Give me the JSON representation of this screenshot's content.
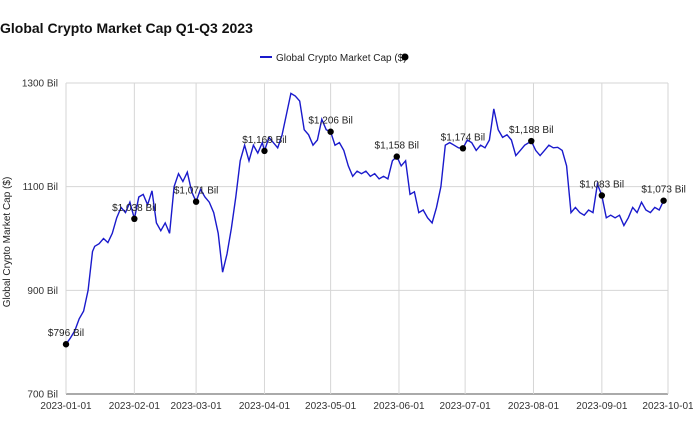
{
  "chart_data": {
    "type": "line",
    "title": "Global Crypto Market Cap Q1-Q3 2023",
    "ylabel": "Global Crypto Market Cap ($)",
    "xlabel": "",
    "ylim": [
      700,
      1300
    ],
    "y_ticks": [
      {
        "value": 700,
        "label": "700 Bil"
      },
      {
        "value": 900,
        "label": "900 Bil"
      },
      {
        "value": 1100,
        "label": "1100 Bil"
      },
      {
        "value": 1300,
        "label": "1300 Bil"
      }
    ],
    "x_range": [
      "2023-01-01",
      "2023-10-01"
    ],
    "x_ticks": [
      "2023-01-01",
      "2023-02-01",
      "2023-03-01",
      "2023-04-01",
      "2023-05-01",
      "2023-06-01",
      "2023-07-01",
      "2023-08-01",
      "2023-09-01",
      "2023-10-01"
    ],
    "grid": true,
    "legend": {
      "position": "top",
      "label": "Global Crypto Market Cap ($)"
    },
    "series": [
      {
        "name": "Global Crypto Market Cap ($)",
        "color": "#1a1acc",
        "points": [
          [
            "2023-01-01",
            796
          ],
          [
            "2023-01-03",
            808
          ],
          [
            "2023-01-05",
            822
          ],
          [
            "2023-01-07",
            845
          ],
          [
            "2023-01-09",
            860
          ],
          [
            "2023-01-11",
            900
          ],
          [
            "2023-01-13",
            975
          ],
          [
            "2023-01-14",
            985
          ],
          [
            "2023-01-16",
            990
          ],
          [
            "2023-01-18",
            1000
          ],
          [
            "2023-01-20",
            992
          ],
          [
            "2023-01-22",
            1010
          ],
          [
            "2023-01-24",
            1040
          ],
          [
            "2023-01-26",
            1060
          ],
          [
            "2023-01-28",
            1050
          ],
          [
            "2023-01-30",
            1070
          ],
          [
            "2023-02-01",
            1038
          ],
          [
            "2023-02-03",
            1080
          ],
          [
            "2023-02-05",
            1085
          ],
          [
            "2023-02-07",
            1065
          ],
          [
            "2023-02-09",
            1092
          ],
          [
            "2023-02-11",
            1030
          ],
          [
            "2023-02-13",
            1015
          ],
          [
            "2023-02-15",
            1030
          ],
          [
            "2023-02-17",
            1010
          ],
          [
            "2023-02-19",
            1100
          ],
          [
            "2023-02-21",
            1125
          ],
          [
            "2023-02-23",
            1110
          ],
          [
            "2023-02-25",
            1128
          ],
          [
            "2023-02-27",
            1090
          ],
          [
            "2023-03-01",
            1071
          ],
          [
            "2023-03-03",
            1095
          ],
          [
            "2023-03-05",
            1080
          ],
          [
            "2023-03-07",
            1070
          ],
          [
            "2023-03-09",
            1050
          ],
          [
            "2023-03-11",
            1010
          ],
          [
            "2023-03-13",
            935
          ],
          [
            "2023-03-15",
            970
          ],
          [
            "2023-03-17",
            1020
          ],
          [
            "2023-03-19",
            1080
          ],
          [
            "2023-03-21",
            1150
          ],
          [
            "2023-03-23",
            1180
          ],
          [
            "2023-03-25",
            1150
          ],
          [
            "2023-03-27",
            1180
          ],
          [
            "2023-03-29",
            1165
          ],
          [
            "2023-03-31",
            1185
          ],
          [
            "2023-04-01",
            1169
          ],
          [
            "2023-04-03",
            1195
          ],
          [
            "2023-04-05",
            1185
          ],
          [
            "2023-04-07",
            1175
          ],
          [
            "2023-04-09",
            1200
          ],
          [
            "2023-04-11",
            1240
          ],
          [
            "2023-04-13",
            1280
          ],
          [
            "2023-04-15",
            1275
          ],
          [
            "2023-04-17",
            1265
          ],
          [
            "2023-04-19",
            1210
          ],
          [
            "2023-04-21",
            1200
          ],
          [
            "2023-04-23",
            1180
          ],
          [
            "2023-04-25",
            1190
          ],
          [
            "2023-04-27",
            1230
          ],
          [
            "2023-04-29",
            1210
          ],
          [
            "2023-05-01",
            1206
          ],
          [
            "2023-05-03",
            1180
          ],
          [
            "2023-05-05",
            1185
          ],
          [
            "2023-05-07",
            1170
          ],
          [
            "2023-05-09",
            1140
          ],
          [
            "2023-05-11",
            1120
          ],
          [
            "2023-05-13",
            1130
          ],
          [
            "2023-05-15",
            1125
          ],
          [
            "2023-05-17",
            1130
          ],
          [
            "2023-05-19",
            1120
          ],
          [
            "2023-05-21",
            1125
          ],
          [
            "2023-05-23",
            1115
          ],
          [
            "2023-05-25",
            1120
          ],
          [
            "2023-05-27",
            1115
          ],
          [
            "2023-05-29",
            1150
          ],
          [
            "2023-05-31",
            1158
          ],
          [
            "2023-06-02",
            1140
          ],
          [
            "2023-06-04",
            1150
          ],
          [
            "2023-06-06",
            1085
          ],
          [
            "2023-06-08",
            1090
          ],
          [
            "2023-06-10",
            1050
          ],
          [
            "2023-06-12",
            1055
          ],
          [
            "2023-06-14",
            1040
          ],
          [
            "2023-06-16",
            1030
          ],
          [
            "2023-06-18",
            1060
          ],
          [
            "2023-06-20",
            1100
          ],
          [
            "2023-06-22",
            1180
          ],
          [
            "2023-06-24",
            1185
          ],
          [
            "2023-06-26",
            1180
          ],
          [
            "2023-06-28",
            1175
          ],
          [
            "2023-06-30",
            1174
          ],
          [
            "2023-07-02",
            1190
          ],
          [
            "2023-07-04",
            1185
          ],
          [
            "2023-07-06",
            1170
          ],
          [
            "2023-07-08",
            1180
          ],
          [
            "2023-07-10",
            1175
          ],
          [
            "2023-07-12",
            1190
          ],
          [
            "2023-07-14",
            1250
          ],
          [
            "2023-07-16",
            1210
          ],
          [
            "2023-07-18",
            1195
          ],
          [
            "2023-07-20",
            1200
          ],
          [
            "2023-07-22",
            1190
          ],
          [
            "2023-07-24",
            1160
          ],
          [
            "2023-07-26",
            1170
          ],
          [
            "2023-07-28",
            1180
          ],
          [
            "2023-07-31",
            1188
          ],
          [
            "2023-08-02",
            1170
          ],
          [
            "2023-08-04",
            1160
          ],
          [
            "2023-08-06",
            1170
          ],
          [
            "2023-08-08",
            1180
          ],
          [
            "2023-08-10",
            1175
          ],
          [
            "2023-08-12",
            1176
          ],
          [
            "2023-08-14",
            1170
          ],
          [
            "2023-08-16",
            1140
          ],
          [
            "2023-08-18",
            1050
          ],
          [
            "2023-08-20",
            1060
          ],
          [
            "2023-08-22",
            1050
          ],
          [
            "2023-08-24",
            1045
          ],
          [
            "2023-08-26",
            1055
          ],
          [
            "2023-08-28",
            1050
          ],
          [
            "2023-08-30",
            1105
          ],
          [
            "2023-09-01",
            1083
          ],
          [
            "2023-09-03",
            1040
          ],
          [
            "2023-09-05",
            1045
          ],
          [
            "2023-09-07",
            1040
          ],
          [
            "2023-09-09",
            1045
          ],
          [
            "2023-09-11",
            1025
          ],
          [
            "2023-09-13",
            1040
          ],
          [
            "2023-09-15",
            1060
          ],
          [
            "2023-09-17",
            1050
          ],
          [
            "2023-09-19",
            1070
          ],
          [
            "2023-09-21",
            1055
          ],
          [
            "2023-09-23",
            1050
          ],
          [
            "2023-09-25",
            1060
          ],
          [
            "2023-09-27",
            1055
          ],
          [
            "2023-09-29",
            1073
          ]
        ]
      }
    ],
    "markers": [
      {
        "x": "2023-01-01",
        "y": 796,
        "label": "$796 Bil"
      },
      {
        "x": "2023-02-01",
        "y": 1038,
        "label": "$1,038 Bil"
      },
      {
        "x": "2023-03-01",
        "y": 1071,
        "label": "$1,071 Bil"
      },
      {
        "x": "2023-04-01",
        "y": 1169,
        "label": "$1,169 Bil"
      },
      {
        "x": "2023-05-01",
        "y": 1206,
        "label": "$1,206 Bil"
      },
      {
        "x": "2023-05-31",
        "y": 1158,
        "label": "$1,158 Bil"
      },
      {
        "x": "2023-06-30",
        "y": 1174,
        "label": "$1,174 Bil"
      },
      {
        "x": "2023-07-31",
        "y": 1188,
        "label": "$1,188 Bil"
      },
      {
        "x": "2023-09-01",
        "y": 1083,
        "label": "$1,083 Bil"
      },
      {
        "x": "2023-09-29",
        "y": 1073,
        "label": "$1,073 Bil"
      }
    ]
  }
}
